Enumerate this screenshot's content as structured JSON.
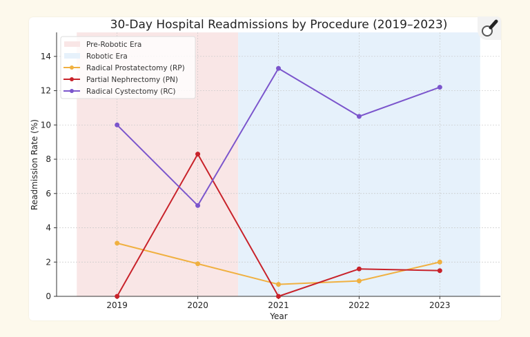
{
  "chart_data": {
    "type": "line",
    "title": "30-Day Hospital Readmissions by Procedure (2019–2023)",
    "xlabel": "Year",
    "ylabel": "Readmission Rate (%)",
    "x": [
      2019,
      2020,
      2021,
      2022,
      2023
    ],
    "x_tick_labels": [
      "2019",
      "2020",
      "2021",
      "2022",
      "2023"
    ],
    "y_ticks": [
      0,
      2,
      4,
      6,
      8,
      10,
      12,
      14
    ],
    "xlim": [
      2018.25,
      2023.75
    ],
    "ylim": [
      0,
      15.4
    ],
    "grid": true,
    "legend_position": "top-left",
    "spans": [
      {
        "name": "Pre-Robotic Era",
        "from": 2018.5,
        "to": 2020.5,
        "color": "#f9e6e6"
      },
      {
        "name": "Robotic Era",
        "from": 2020.5,
        "to": 2023.5,
        "color": "#e6f1fb"
      }
    ],
    "series": [
      {
        "name": "Radical Prostatectomy (RP)",
        "color": "#f0b040",
        "values": [
          3.1,
          1.9,
          0.7,
          0.9,
          2.0
        ]
      },
      {
        "name": "Partial Nephrectomy (PN)",
        "color": "#c8222a",
        "values": [
          0.0,
          8.3,
          0.0,
          1.6,
          1.5
        ]
      },
      {
        "name": "Radical Cystectomy (RC)",
        "color": "#7b55cc",
        "values": [
          10.0,
          5.3,
          13.3,
          10.5,
          12.2
        ]
      }
    ]
  },
  "toolbar": {
    "zoom_icon": "magnifier-icon"
  }
}
